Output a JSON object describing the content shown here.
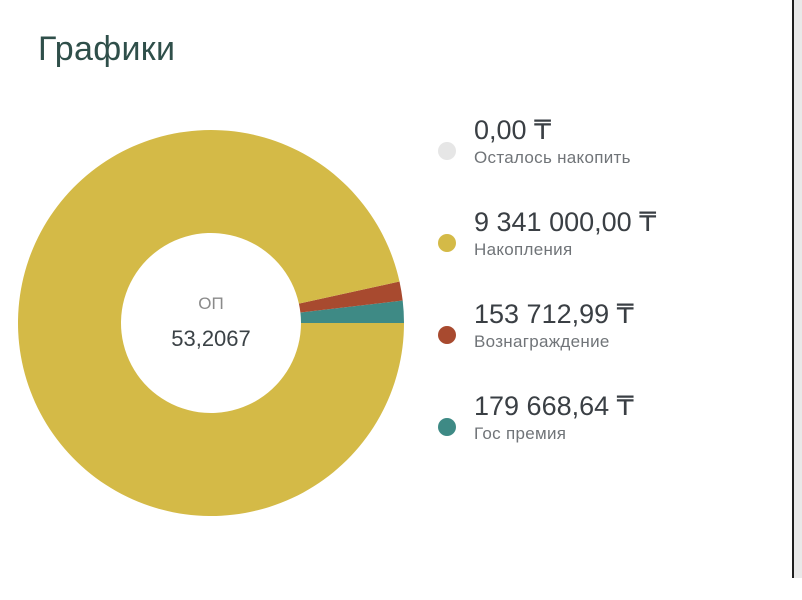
{
  "page": {
    "title": "Графики"
  },
  "chart_data": {
    "type": "pie",
    "center": {
      "caption": "ОП",
      "value": "53,2067"
    },
    "legend_placement": "right",
    "series": [
      {
        "name": "Осталось накопить",
        "value": 0.0,
        "display": "0,00 ₸",
        "color": "#e6e6e6"
      },
      {
        "name": "Накопления",
        "value": 9341000.0,
        "display": "9 341 000,00 ₸",
        "color": "#d4ba47"
      },
      {
        "name": "Вознаграждение",
        "value": 153712.99,
        "display": "153 712,99 ₸",
        "color": "#a84a2f"
      },
      {
        "name": "Гос премия",
        "value": 179668.64,
        "display": "179 668,64 ₸",
        "color": "#3e8a85"
      }
    ]
  }
}
